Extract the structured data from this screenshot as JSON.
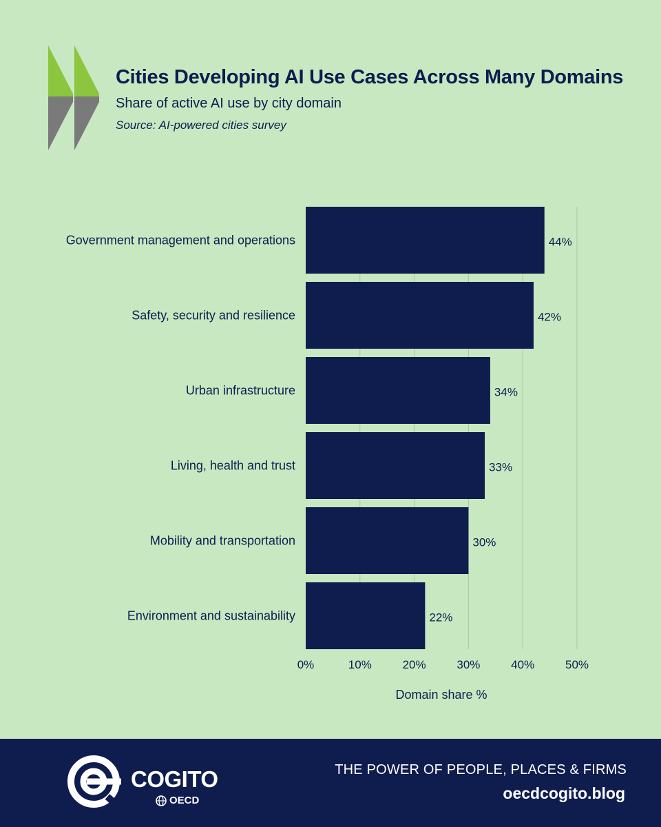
{
  "header": {
    "title": "Cities Developing AI Use Cases Across Many Domains",
    "subtitle": "Share of active AI use by city domain",
    "source": "Source: AI-powered cities survey"
  },
  "colors": {
    "background": "#c8e8c2",
    "bar": "#0e1c4e",
    "text": "#0e1c4e",
    "logo_green": "#8cc63f",
    "logo_gray": "#7a7a7a",
    "gridline": "#a9c7a3",
    "footer": "#0e1c4e"
  },
  "chart_data": {
    "type": "bar",
    "orientation": "horizontal",
    "categories": [
      "Government management and operations",
      "Safety, security and resilience",
      "Urban infrastructure",
      "Living, health and trust",
      "Mobility and transportation",
      "Environment and sustainability"
    ],
    "values": [
      44,
      42,
      34,
      33,
      30,
      22
    ],
    "value_labels": [
      "44%",
      "42%",
      "34%",
      "33%",
      "30%",
      "22%"
    ],
    "xlabel": "Domain share %",
    "xlim": [
      0,
      50
    ],
    "xticks": [
      0,
      10,
      20,
      30,
      40,
      50
    ],
    "xtick_labels": [
      "0%",
      "10%",
      "20%",
      "30%",
      "40%",
      "50%"
    ],
    "grid": "vertical",
    "legend": "none"
  },
  "footer": {
    "brand": "COGITO",
    "brand_sub": "OECD",
    "tagline": "THE POWER OF PEOPLE, PLACES & FIRMS",
    "url": "oecdcogito.blog"
  }
}
